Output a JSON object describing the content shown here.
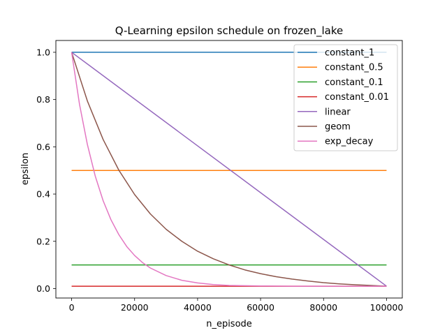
{
  "chart_data": {
    "type": "line",
    "title": "Q-Learning epsilon schedule on frozen_lake",
    "xlabel": "n_episode",
    "ylabel": "epsilon",
    "xlim": [
      -5000,
      105000
    ],
    "ylim": [
      -0.04,
      1.05
    ],
    "xticks": [
      0,
      20000,
      40000,
      60000,
      80000,
      100000
    ],
    "xtick_labels": [
      "0",
      "20000",
      "40000",
      "60000",
      "80000",
      "100000"
    ],
    "yticks": [
      0.0,
      0.2,
      0.4,
      0.6,
      0.8,
      1.0
    ],
    "ytick_labels": [
      "0.0",
      "0.2",
      "0.4",
      "0.6",
      "0.8",
      "1.0"
    ],
    "grid": false,
    "legend_position": "top-right",
    "series": [
      {
        "name": "constant_1",
        "color": "#1f77b4",
        "x": [
          0,
          100000
        ],
        "y": [
          1.0,
          1.0
        ]
      },
      {
        "name": "constant_0.5",
        "color": "#ff7f0e",
        "x": [
          0,
          100000
        ],
        "y": [
          0.5,
          0.5
        ]
      },
      {
        "name": "constant_0.1",
        "color": "#2ca02c",
        "x": [
          0,
          100000
        ],
        "y": [
          0.1,
          0.1
        ]
      },
      {
        "name": "constant_0.01",
        "color": "#d62728",
        "x": [
          0,
          100000
        ],
        "y": [
          0.01,
          0.01
        ]
      },
      {
        "name": "linear",
        "color": "#9467bd",
        "x": [
          0,
          100000
        ],
        "y": [
          1.0,
          0.01
        ]
      },
      {
        "name": "geom",
        "color": "#8c564b",
        "x": [
          0,
          5000,
          10000,
          15000,
          20000,
          25000,
          30000,
          35000,
          40000,
          45000,
          50000,
          55000,
          60000,
          65000,
          70000,
          75000,
          80000,
          85000,
          90000,
          95000,
          100000
        ],
        "y": [
          1.0,
          0.794,
          0.631,
          0.501,
          0.398,
          0.316,
          0.251,
          0.2,
          0.158,
          0.126,
          0.1,
          0.079,
          0.063,
          0.05,
          0.04,
          0.032,
          0.025,
          0.02,
          0.016,
          0.013,
          0.01
        ]
      },
      {
        "name": "exp_decay",
        "color": "#e377c2",
        "x": [
          0,
          2500,
          5000,
          7500,
          10000,
          12500,
          15000,
          17500,
          20000,
          22500,
          25000,
          30000,
          35000,
          40000,
          45000,
          50000,
          60000,
          70000,
          80000,
          90000,
          100000
        ],
        "y": [
          1.0,
          0.78,
          0.61,
          0.476,
          0.372,
          0.291,
          0.228,
          0.178,
          0.14,
          0.11,
          0.087,
          0.055,
          0.035,
          0.024,
          0.017,
          0.013,
          0.011,
          0.01,
          0.01,
          0.01,
          0.01
        ]
      }
    ]
  }
}
